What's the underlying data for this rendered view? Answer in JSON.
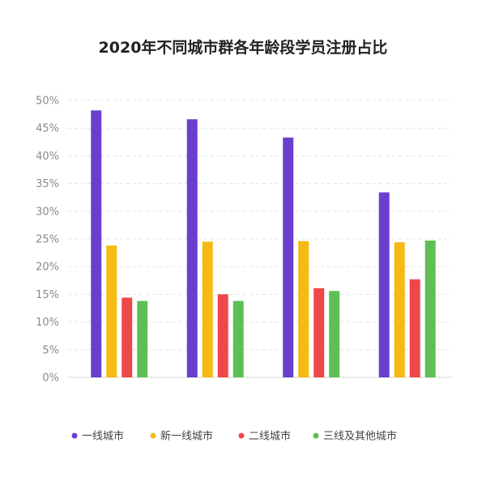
{
  "chart_data": {
    "type": "bar",
    "title": "2020年不同城市群各年龄段学员注册占比",
    "xlabel": "",
    "ylabel": "",
    "ylim": [
      0,
      50
    ],
    "yticks": [
      0,
      5,
      10,
      15,
      20,
      25,
      30,
      35,
      40,
      45,
      50
    ],
    "ytick_suffix": "%",
    "grid": true,
    "legend_position": "bottom",
    "categories": [
      "",
      "",
      "",
      ""
    ],
    "series": [
      {
        "name": "一线城市",
        "color": "#6a3fcf",
        "values": [
          48.2,
          46.6,
          43.3,
          33.4
        ]
      },
      {
        "name": "新一线城市",
        "color": "#f5bb12",
        "values": [
          23.8,
          24.5,
          24.6,
          24.4
        ]
      },
      {
        "name": "二线城市",
        "color": "#ef4747",
        "values": [
          14.4,
          15.0,
          16.1,
          17.7
        ]
      },
      {
        "name": "三线及其他城市",
        "color": "#5fbf54",
        "values": [
          13.8,
          13.8,
          15.6,
          24.7
        ]
      }
    ]
  }
}
